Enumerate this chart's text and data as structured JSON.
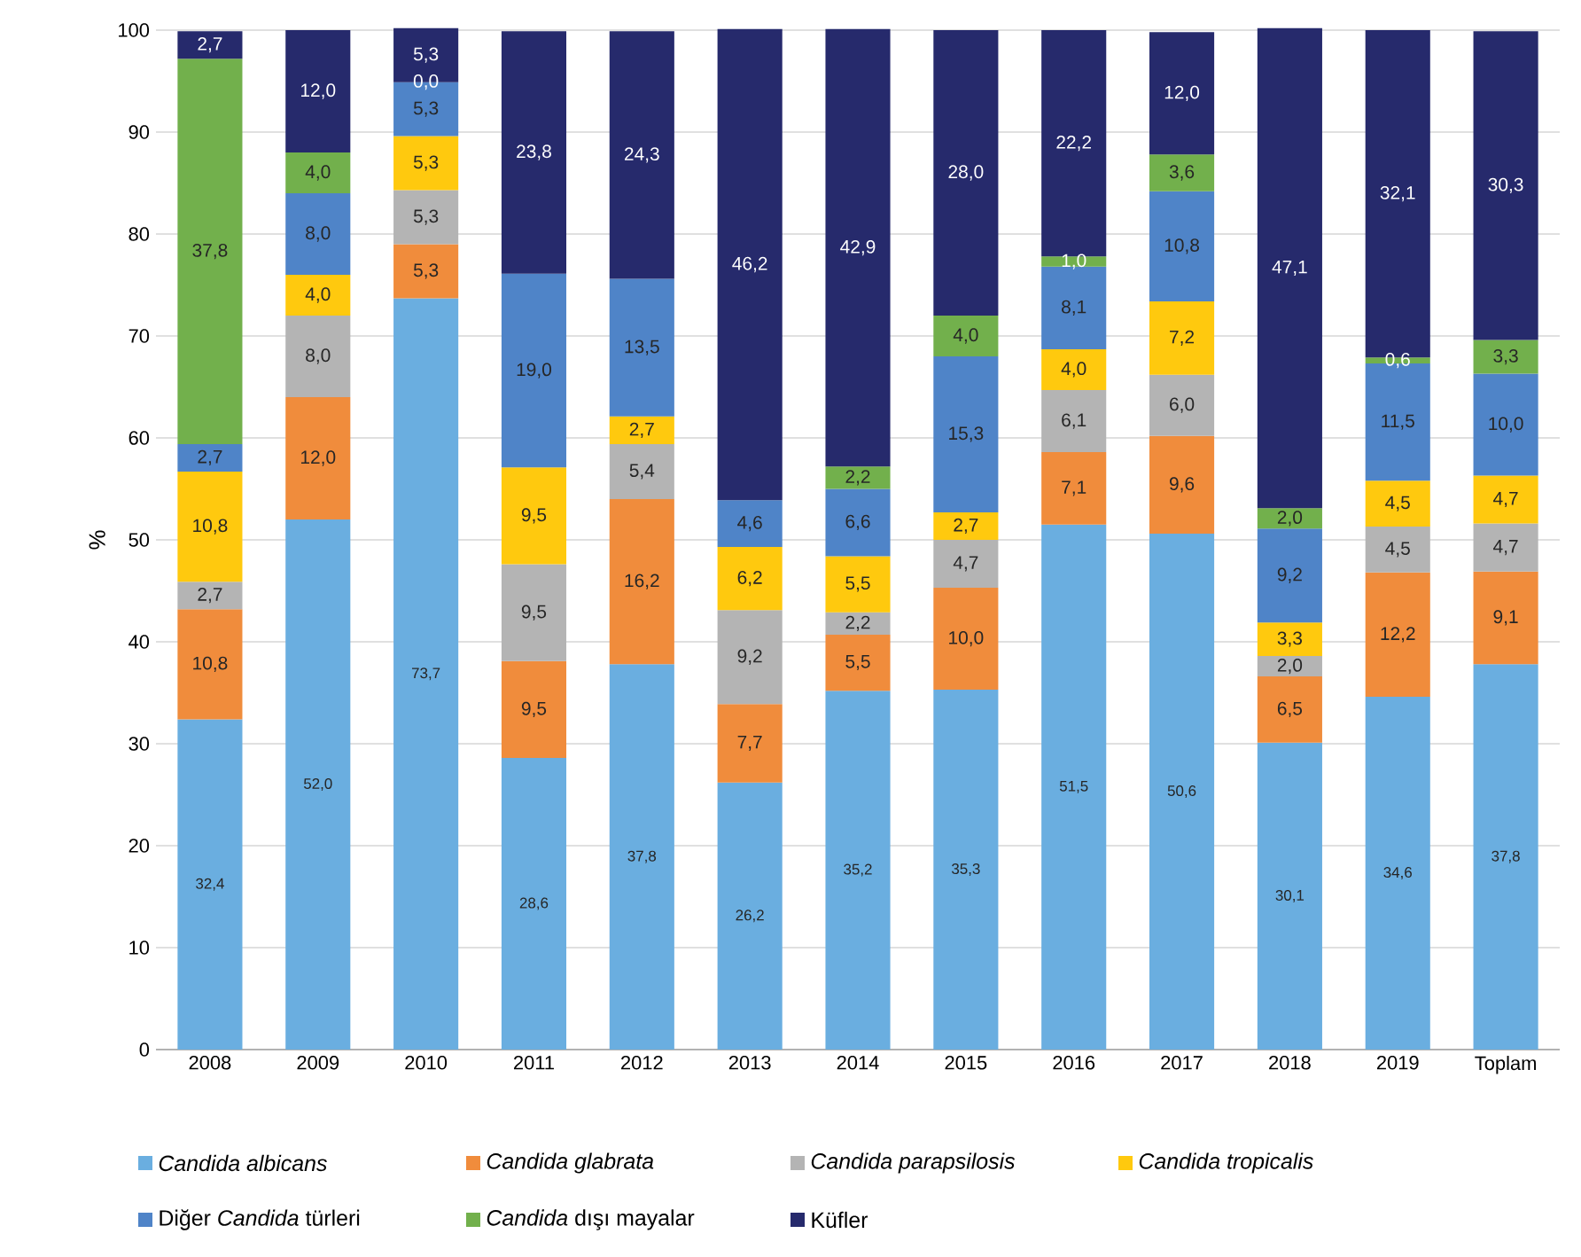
{
  "chart_data": {
    "type": "bar",
    "stacked": true,
    "ylabel": "%",
    "ylim": [
      0,
      100
    ],
    "yticks": [
      0,
      10,
      20,
      30,
      40,
      50,
      60,
      70,
      80,
      90,
      100
    ],
    "grid": "y",
    "legend": "bottom",
    "data_labels": true,
    "categories": [
      "2008",
      "2009",
      "2010",
      "2011",
      "2012",
      "2013",
      "2014",
      "2015",
      "2016",
      "2017",
      "2018",
      "2019",
      "Toplam"
    ],
    "series": [
      {
        "name": "*Candida albicans*",
        "color": "#6aaee0",
        "values": [
          32.4,
          52.0,
          73.7,
          28.6,
          37.8,
          26.2,
          35.2,
          35.3,
          51.5,
          50.6,
          30.1,
          34.6,
          37.8
        ],
        "value_labels": [
          "32,4",
          "52,0",
          "73,7",
          "28,6",
          "37,8",
          "26,2",
          "35,2",
          "35,3",
          "51,5",
          "50,6",
          "30,1",
          "34,6",
          "37,8"
        ]
      },
      {
        "name": "*Candida glabrata*",
        "color": "#f08c3c",
        "values": [
          10.8,
          12.0,
          5.3,
          9.5,
          16.2,
          7.7,
          5.5,
          10.0,
          7.1,
          9.6,
          6.5,
          12.2,
          9.1
        ],
        "value_labels": [
          "10,8",
          "12,0",
          "5,3",
          "9,5",
          "16,2",
          "7,7",
          "5,5",
          "10,0",
          "7,1",
          "9,6",
          "6,5",
          "12,2",
          "9,1"
        ]
      },
      {
        "name": "*Candida parapsilosis*",
        "color": "#b4b4b4",
        "values": [
          2.7,
          8.0,
          5.3,
          9.5,
          5.4,
          9.2,
          2.2,
          4.7,
          6.1,
          6.0,
          2.0,
          4.5,
          4.7
        ],
        "value_labels": [
          "2,7",
          "8,0",
          "5,3",
          "9,5",
          "5,4",
          "9,2",
          "2,2",
          "4,7",
          "6,1",
          "6,0",
          "2,0",
          "4,5",
          "4,7"
        ]
      },
      {
        "name": "*Candida tropicalis*",
        "color": "#ffc90e",
        "values": [
          10.8,
          4.0,
          5.3,
          9.5,
          2.7,
          6.2,
          5.5,
          2.7,
          4.0,
          7.2,
          3.3,
          4.5,
          4.7
        ],
        "value_labels": [
          "10,8",
          "4,0",
          "5,3",
          "9,5",
          "2,7",
          "6,2",
          "5,5",
          "2,7",
          "4,0",
          "7,2",
          "3,3",
          "4,5",
          "4,7"
        ]
      },
      {
        "name": "Diğer *Candida* türleri",
        "color": "#4f84c8",
        "values": [
          2.7,
          8.0,
          5.3,
          19.0,
          13.5,
          4.6,
          6.6,
          15.3,
          8.1,
          10.8,
          9.2,
          11.5,
          10.0
        ],
        "value_labels": [
          "2,7",
          "8,0",
          "5,3",
          "19,0",
          "13,5",
          "4,6",
          "6,6",
          "15,3",
          "8,1",
          "10,8",
          "9,2",
          "11,5",
          "10,0"
        ]
      },
      {
        "name": "*Candida* dışı mayalar",
        "color": "#72b04c",
        "values": [
          37.8,
          4.0,
          0.0,
          null,
          null,
          null,
          2.2,
          4.0,
          1.0,
          3.6,
          2.0,
          0.6,
          3.3
        ],
        "value_labels": [
          "37,8",
          "4,0",
          "0,0",
          null,
          null,
          null,
          "2,2",
          "4,0",
          "1,0",
          "3,6",
          "2,0",
          "0,6",
          "3,3"
        ]
      },
      {
        "name": "Küfler",
        "color": "#262a6c",
        "values": [
          2.7,
          12.0,
          5.3,
          23.8,
          24.3,
          46.2,
          42.9,
          28.0,
          22.2,
          12.0,
          47.1,
          32.1,
          30.3
        ],
        "value_labels": [
          "2,7",
          "12,0",
          "5,3",
          "23,8",
          "24,3",
          "46,2",
          "42,9",
          "28,0",
          "22,2",
          "12,0",
          "47,1",
          "32,1",
          "30,3"
        ]
      }
    ]
  }
}
